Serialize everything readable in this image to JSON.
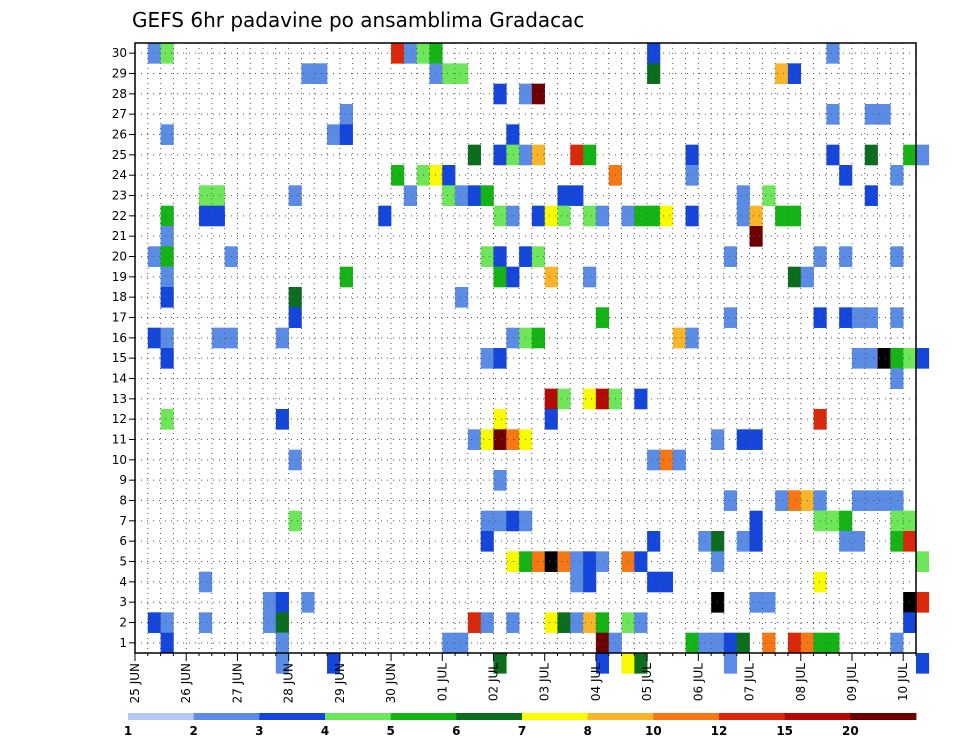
{
  "chart_data": {
    "type": "heatmap",
    "title": "GEFS 6hr padavine po ansamblima Gradacac",
    "xlabel": "",
    "ylabel": "",
    "x_ticks": [
      "25 JUN",
      "26 JUN",
      "27 JUN",
      "28 JUN",
      "29 JUN",
      "30 JUN",
      "01 JUL",
      "02 JUL",
      "03 JUL",
      "04 JUL",
      "05 JUL",
      "06 JUL",
      "07 JUL",
      "08 JUL",
      "09 JUL",
      "10 JUL"
    ],
    "y_ticks": [
      "1",
      "2",
      "3",
      "4",
      "5",
      "6",
      "7",
      "8",
      "9",
      "10",
      "11",
      "12",
      "13",
      "14",
      "15",
      "16",
      "17",
      "18",
      "19",
      "20",
      "21",
      "22",
      "23",
      "24",
      "25",
      "26",
      "27",
      "28",
      "29",
      "30"
    ],
    "steps_per_day": 4,
    "xlim_steps": [
      0,
      61
    ],
    "ylim": [
      0.5,
      30.5
    ],
    "grid": true,
    "legend": {
      "position": "bottom",
      "labels": [
        "1",
        "2",
        "3",
        "4",
        "5",
        "6",
        "7",
        "8",
        "10",
        "12",
        "15",
        "20"
      ],
      "colors": [
        "#b4c8f5",
        "#5a8ce6",
        "#1446dc",
        "#6ee65a",
        "#14b414",
        "#0a6e1e",
        "#fafa00",
        "#fab428",
        "#f57814",
        "#dc280a",
        "#b40a00",
        "#6e0000"
      ]
    },
    "cells": [
      [
        30,
        1,
        1
      ],
      [
        30,
        2,
        3
      ],
      [
        30,
        20,
        9
      ],
      [
        30,
        21,
        1
      ],
      [
        30,
        22,
        3
      ],
      [
        30,
        23,
        4
      ],
      [
        30,
        40,
        2
      ],
      [
        30,
        54,
        1
      ],
      [
        29,
        13,
        1
      ],
      [
        29,
        14,
        1
      ],
      [
        29,
        23,
        1
      ],
      [
        29,
        24,
        3
      ],
      [
        29,
        25,
        3
      ],
      [
        29,
        40,
        5
      ],
      [
        29,
        50,
        7
      ],
      [
        29,
        51,
        2
      ],
      [
        28,
        28,
        2
      ],
      [
        28,
        30,
        1
      ],
      [
        28,
        31,
        11
      ],
      [
        27,
        16,
        1
      ],
      [
        27,
        54,
        1
      ],
      [
        27,
        57,
        1
      ],
      [
        27,
        58,
        1
      ],
      [
        26,
        2,
        1
      ],
      [
        26,
        15,
        1
      ],
      [
        26,
        16,
        2
      ],
      [
        26,
        29,
        2
      ],
      [
        25,
        26,
        5
      ],
      [
        25,
        28,
        2
      ],
      [
        25,
        29,
        3
      ],
      [
        25,
        30,
        1
      ],
      [
        25,
        31,
        7
      ],
      [
        25,
        34,
        9
      ],
      [
        25,
        35,
        4
      ],
      [
        25,
        43,
        2
      ],
      [
        25,
        54,
        2
      ],
      [
        25,
        57,
        5
      ],
      [
        25,
        60,
        4
      ],
      [
        25,
        61,
        1
      ],
      [
        24,
        20,
        4
      ],
      [
        24,
        22,
        3
      ],
      [
        24,
        23,
        6
      ],
      [
        24,
        24,
        2
      ],
      [
        24,
        37,
        8
      ],
      [
        24,
        43,
        1
      ],
      [
        24,
        55,
        2
      ],
      [
        24,
        59,
        1
      ],
      [
        23,
        5,
        3
      ],
      [
        23,
        6,
        3
      ],
      [
        23,
        12,
        1
      ],
      [
        23,
        21,
        1
      ],
      [
        23,
        24,
        3
      ],
      [
        23,
        25,
        1
      ],
      [
        23,
        26,
        2
      ],
      [
        23,
        27,
        4
      ],
      [
        23,
        33,
        2
      ],
      [
        23,
        34,
        2
      ],
      [
        23,
        47,
        1
      ],
      [
        23,
        49,
        3
      ],
      [
        23,
        57,
        2
      ],
      [
        22,
        2,
        4
      ],
      [
        22,
        5,
        2
      ],
      [
        22,
        6,
        2
      ],
      [
        22,
        19,
        2
      ],
      [
        22,
        28,
        3
      ],
      [
        22,
        29,
        1
      ],
      [
        22,
        31,
        2
      ],
      [
        22,
        32,
        6
      ],
      [
        22,
        33,
        3
      ],
      [
        22,
        35,
        3
      ],
      [
        22,
        36,
        1
      ],
      [
        22,
        38,
        1
      ],
      [
        22,
        39,
        4
      ],
      [
        22,
        40,
        4
      ],
      [
        22,
        41,
        6
      ],
      [
        22,
        43,
        2
      ],
      [
        22,
        47,
        1
      ],
      [
        22,
        48,
        7
      ],
      [
        22,
        50,
        4
      ],
      [
        22,
        51,
        4
      ],
      [
        21,
        2,
        1
      ],
      [
        21,
        48,
        11
      ],
      [
        20,
        1,
        1
      ],
      [
        20,
        2,
        4
      ],
      [
        20,
        7,
        1
      ],
      [
        20,
        27,
        3
      ],
      [
        20,
        28,
        2
      ],
      [
        20,
        30,
        2
      ],
      [
        20,
        31,
        3
      ],
      [
        20,
        46,
        1
      ],
      [
        20,
        53,
        1
      ],
      [
        20,
        55,
        1
      ],
      [
        20,
        59,
        1
      ],
      [
        19,
        2,
        1
      ],
      [
        19,
        16,
        4
      ],
      [
        19,
        28,
        4
      ],
      [
        19,
        29,
        2
      ],
      [
        19,
        32,
        7
      ],
      [
        19,
        35,
        1
      ],
      [
        19,
        51,
        5
      ],
      [
        19,
        52,
        1
      ],
      [
        18,
        2,
        2
      ],
      [
        18,
        12,
        5
      ],
      [
        18,
        25,
        1
      ],
      [
        17,
        12,
        2
      ],
      [
        17,
        36,
        4
      ],
      [
        17,
        46,
        1
      ],
      [
        17,
        53,
        2
      ],
      [
        17,
        55,
        2
      ],
      [
        17,
        56,
        1
      ],
      [
        17,
        57,
        1
      ],
      [
        17,
        59,
        1
      ],
      [
        16,
        1,
        2
      ],
      [
        16,
        2,
        1
      ],
      [
        16,
        6,
        1
      ],
      [
        16,
        7,
        1
      ],
      [
        16,
        11,
        1
      ],
      [
        16,
        29,
        1
      ],
      [
        16,
        30,
        3
      ],
      [
        16,
        31,
        4
      ],
      [
        16,
        42,
        7
      ],
      [
        16,
        43,
        1
      ],
      [
        15,
        2,
        2
      ],
      [
        15,
        27,
        1
      ],
      [
        15,
        28,
        2
      ],
      [
        15,
        56,
        1
      ],
      [
        15,
        57,
        1
      ],
      [
        15,
        58,
        12
      ],
      [
        15,
        59,
        4
      ],
      [
        15,
        60,
        3
      ],
      [
        15,
        61,
        2
      ],
      [
        14,
        59,
        1
      ],
      [
        13,
        32,
        10
      ],
      [
        13,
        33,
        3
      ],
      [
        13,
        35,
        6
      ],
      [
        13,
        36,
        10
      ],
      [
        13,
        37,
        3
      ],
      [
        13,
        39,
        2
      ],
      [
        12,
        2,
        3
      ],
      [
        12,
        11,
        2
      ],
      [
        12,
        28,
        6
      ],
      [
        12,
        32,
        2
      ],
      [
        12,
        53,
        9
      ],
      [
        11,
        26,
        1
      ],
      [
        11,
        27,
        6
      ],
      [
        11,
        28,
        11
      ],
      [
        11,
        29,
        8
      ],
      [
        11,
        30,
        6
      ],
      [
        11,
        45,
        1
      ],
      [
        11,
        47,
        2
      ],
      [
        11,
        48,
        2
      ],
      [
        10,
        12,
        1
      ],
      [
        10,
        40,
        1
      ],
      [
        10,
        41,
        8
      ],
      [
        10,
        42,
        1
      ],
      [
        9,
        28,
        1
      ],
      [
        8,
        46,
        1
      ],
      [
        8,
        50,
        1
      ],
      [
        8,
        51,
        8
      ],
      [
        8,
        52,
        7
      ],
      [
        8,
        53,
        1
      ],
      [
        8,
        56,
        1
      ],
      [
        8,
        57,
        1
      ],
      [
        8,
        58,
        1
      ],
      [
        8,
        59,
        1
      ],
      [
        7,
        12,
        3
      ],
      [
        7,
        27,
        1
      ],
      [
        7,
        28,
        1
      ],
      [
        7,
        29,
        2
      ],
      [
        7,
        30,
        1
      ],
      [
        7,
        48,
        2
      ],
      [
        7,
        53,
        3
      ],
      [
        7,
        54,
        3
      ],
      [
        7,
        55,
        4
      ],
      [
        7,
        59,
        3
      ],
      [
        7,
        60,
        3
      ],
      [
        6,
        27,
        2
      ],
      [
        6,
        40,
        2
      ],
      [
        6,
        44,
        1
      ],
      [
        6,
        45,
        5
      ],
      [
        6,
        47,
        1
      ],
      [
        6,
        48,
        2
      ],
      [
        6,
        55,
        1
      ],
      [
        6,
        56,
        1
      ],
      [
        6,
        59,
        4
      ],
      [
        6,
        60,
        9
      ],
      [
        5,
        29,
        6
      ],
      [
        5,
        30,
        4
      ],
      [
        5,
        31,
        8
      ],
      [
        5,
        32,
        12
      ],
      [
        5,
        33,
        8
      ],
      [
        5,
        34,
        1
      ],
      [
        5,
        35,
        2
      ],
      [
        5,
        36,
        1
      ],
      [
        5,
        38,
        8
      ],
      [
        5,
        39,
        2
      ],
      [
        5,
        45,
        1
      ],
      [
        5,
        61,
        3
      ],
      [
        4,
        5,
        1
      ],
      [
        4,
        34,
        1
      ],
      [
        4,
        35,
        2
      ],
      [
        4,
        40,
        2
      ],
      [
        4,
        41,
        2
      ],
      [
        4,
        53,
        6
      ],
      [
        3,
        10,
        1
      ],
      [
        3,
        11,
        2
      ],
      [
        3,
        13,
        1
      ],
      [
        3,
        45,
        12
      ],
      [
        3,
        48,
        1
      ],
      [
        3,
        49,
        1
      ],
      [
        3,
        60,
        12
      ],
      [
        3,
        61,
        9
      ],
      [
        2,
        1,
        2
      ],
      [
        2,
        2,
        1
      ],
      [
        2,
        5,
        1
      ],
      [
        2,
        10,
        1
      ],
      [
        2,
        11,
        5
      ],
      [
        2,
        26,
        9
      ],
      [
        2,
        27,
        1
      ],
      [
        2,
        29,
        1
      ],
      [
        2,
        32,
        6
      ],
      [
        2,
        33,
        5
      ],
      [
        2,
        34,
        1
      ],
      [
        2,
        35,
        7
      ],
      [
        2,
        36,
        4
      ],
      [
        2,
        38,
        3
      ],
      [
        2,
        39,
        1
      ],
      [
        2,
        60,
        2
      ],
      [
        1,
        2,
        2
      ],
      [
        1,
        11,
        1
      ],
      [
        1,
        24,
        1
      ],
      [
        1,
        25,
        1
      ],
      [
        1,
        36,
        11
      ],
      [
        1,
        37,
        1
      ],
      [
        1,
        43,
        4
      ],
      [
        1,
        44,
        1
      ],
      [
        1,
        45,
        1
      ],
      [
        1,
        46,
        2
      ],
      [
        1,
        47,
        5
      ],
      [
        1,
        49,
        8
      ],
      [
        1,
        51,
        9
      ],
      [
        1,
        52,
        8
      ],
      [
        1,
        53,
        4
      ],
      [
        1,
        54,
        4
      ],
      [
        1,
        59,
        1
      ],
      [
        0,
        11,
        1
      ],
      [
        0,
        15,
        2
      ],
      [
        0,
        28,
        5
      ],
      [
        0,
        36,
        2
      ],
      [
        0,
        38,
        6
      ],
      [
        0,
        39,
        5
      ],
      [
        0,
        46,
        1
      ],
      [
        0,
        61,
        2
      ]
    ]
  }
}
